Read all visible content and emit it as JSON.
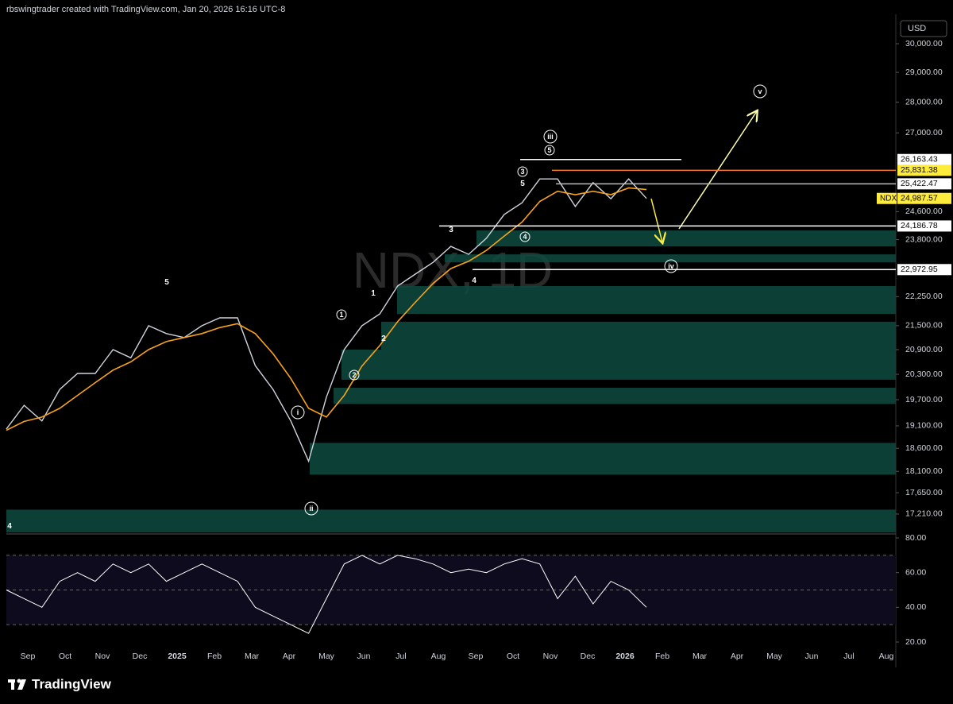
{
  "header": {
    "credit": "rbswingtrader created with TradingView.com, Jan 20, 2026 16:16 UTC-8"
  },
  "chart_data": {
    "type": "line",
    "watermark": "NDX, 1D",
    "currency": "USD",
    "log": true,
    "ylim": [
      16810,
      31060
    ],
    "yticks": [
      {
        "value": 17210,
        "label": "17,210.00"
      },
      {
        "value": 17650,
        "label": "17,650.00"
      },
      {
        "value": 18100,
        "label": "18,100.00"
      },
      {
        "value": 18600,
        "label": "18,600.00"
      },
      {
        "value": 19100,
        "label": "19,100.00"
      },
      {
        "value": 19700,
        "label": "19,700.00"
      },
      {
        "value": 20300,
        "label": "20,300.00"
      },
      {
        "value": 20900,
        "label": "20,900.00"
      },
      {
        "value": 21500,
        "label": "21,500.00"
      },
      {
        "value": 22250,
        "label": "22,250.00"
      },
      {
        "value": 23800,
        "label": "23,800.00"
      },
      {
        "value": 24600,
        "label": "24,600.00"
      },
      {
        "value": 27000,
        "label": "27,000.00"
      },
      {
        "value": 28000,
        "label": "28,000.00"
      },
      {
        "value": 29000,
        "label": "29,000.00"
      },
      {
        "value": 30000,
        "label": "30,000.00"
      }
    ],
    "x_labels": [
      "Sep",
      "Oct",
      "Nov",
      "Dec",
      "2025",
      "Feb",
      "Mar",
      "Apr",
      "May",
      "Jun",
      "Jul",
      "Aug",
      "Sep",
      "Oct",
      "Nov",
      "Dec",
      "2026",
      "Feb",
      "Mar",
      "Apr",
      "May",
      "Jun",
      "Jul",
      "Aug"
    ],
    "series": [
      {
        "color": "#d1d4dc",
        "values": [
          19030,
          19570,
          19210,
          19940,
          20320,
          20320,
          20900,
          20700,
          21500,
          21300,
          21200,
          21500,
          21700,
          21700,
          20510,
          19940,
          19210,
          18320,
          19760,
          20900,
          21500,
          21800,
          22530,
          22850,
          23170,
          23610,
          23390,
          23840,
          24520,
          24860,
          25570,
          25570,
          24750,
          25460,
          24980,
          25570,
          24987.57
        ]
      },
      {
        "color": "#f7a21b",
        "values": [
          19000,
          19200,
          19300,
          19500,
          19800,
          20100,
          20400,
          20600,
          20900,
          21100,
          21200,
          21300,
          21450,
          21550,
          21300,
          20800,
          20200,
          19500,
          19300,
          19800,
          20500,
          21000,
          21600,
          22100,
          22600,
          23000,
          23200,
          23500,
          23900,
          24300,
          24900,
          25200,
          25100,
          25200,
          25100,
          25300,
          25250
        ]
      }
    ],
    "zone_color": "#0e4a40",
    "zones": [
      [
        16840,
        17300
      ],
      [
        18030,
        18720
      ],
      [
        19600,
        19980
      ],
      [
        20170,
        20900
      ],
      [
        20900,
        21600
      ],
      [
        21800,
        22530
      ],
      [
        23170,
        23390
      ],
      [
        23610,
        24060
      ]
    ],
    "price_lines": [
      {
        "value": 26163.43,
        "label": "26,163.43",
        "color": "#ffffff",
        "tag_color": "#ffffff"
      },
      {
        "value": 25831.38,
        "label": "25,831.38",
        "color": "#f57c2e",
        "tag_color": "#ffeb3b"
      },
      {
        "value": 25422.47,
        "label": "25,422.47",
        "color": "#bdbdbd",
        "tag_color": "#ffffff"
      },
      {
        "value": 24987.57,
        "label": "24,987.57",
        "symbol": "NDX",
        "tag_color": "#ffeb3b"
      },
      {
        "value": 24186.78,
        "label": "24,186.78",
        "color": "#ffffff",
        "tag_color": "#ffffff"
      },
      {
        "value": 22972.95,
        "label": "22,972.95",
        "color": "#ffffff",
        "tag_color": "#ffffff"
      }
    ],
    "annotations": [
      {
        "text": "5",
        "circled": false
      },
      {
        "text": "1",
        "circled": false
      },
      {
        "text": "2",
        "circled": false
      },
      {
        "text": "3",
        "circled": false
      },
      {
        "text": "4",
        "circled": false
      },
      {
        "text": "5",
        "circled": false
      },
      {
        "text": "4",
        "circled": false
      },
      {
        "text": "1",
        "circled": true
      },
      {
        "text": "2",
        "circled": true
      },
      {
        "text": "3",
        "circled": true
      },
      {
        "text": "4",
        "circled": true
      },
      {
        "text": "5",
        "circled": true
      },
      {
        "text": "i",
        "circled": true
      },
      {
        "text": "ii",
        "circled": true
      },
      {
        "text": "iii",
        "circled": true
      },
      {
        "text": "iv",
        "circled": true
      },
      {
        "text": "v",
        "circled": true
      }
    ]
  },
  "rsi": {
    "type": "line",
    "color": "#ffffff",
    "ylim": [
      16.8,
      82.3
    ],
    "yticks": [
      {
        "value": 20,
        "label": "20.00"
      },
      {
        "value": 40,
        "label": "40.00"
      },
      {
        "value": 60,
        "label": "60.00"
      },
      {
        "value": 80,
        "label": "80.00"
      }
    ],
    "levels": [
      30,
      50,
      70
    ],
    "values": [
      50,
      45,
      40,
      55,
      60,
      55,
      65,
      60,
      65,
      55,
      60,
      65,
      60,
      55,
      40,
      35,
      30,
      25,
      45,
      65,
      70,
      65,
      70,
      68,
      65,
      60,
      62,
      60,
      65,
      68,
      65,
      45,
      58,
      42,
      55,
      50,
      40
    ]
  },
  "footer": {
    "brand": "TradingView"
  }
}
